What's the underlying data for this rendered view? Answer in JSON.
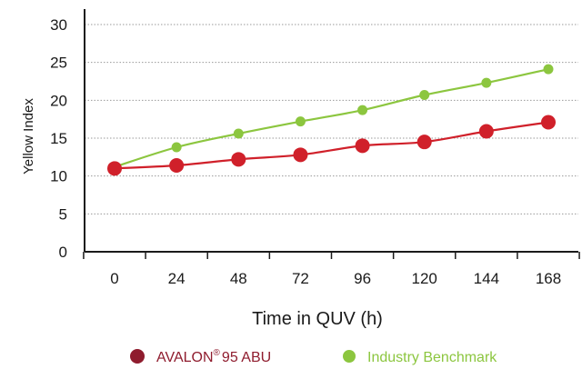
{
  "chart_data": {
    "type": "line",
    "title": "",
    "xlabel": "Time in QUV (h)",
    "ylabel": "Yellow Index",
    "categories": [
      "0",
      "24",
      "48",
      "72",
      "96",
      "120",
      "144",
      "168"
    ],
    "ylim": [
      0,
      30
    ],
    "yticks": [
      "0",
      "5",
      "10",
      "15",
      "20",
      "25",
      "30"
    ],
    "grid": "horizontal dotted",
    "legend_position": "bottom",
    "series": [
      {
        "name": "AVALON® 95 ABU",
        "legend_base": "AVALON",
        "legend_sup": "®",
        "legend_rest": "95 ABU",
        "color": "#d0202a",
        "legend_color": "#8f1c2e",
        "values": [
          11.0,
          11.4,
          12.2,
          12.8,
          14.0,
          14.5,
          15.9,
          17.1
        ]
      },
      {
        "name": "Industry Benchmark",
        "color": "#8cc63f",
        "legend_color": "#8cc63f",
        "values": [
          11.2,
          13.8,
          15.6,
          17.2,
          18.7,
          20.7,
          22.3,
          24.1
        ]
      }
    ]
  }
}
